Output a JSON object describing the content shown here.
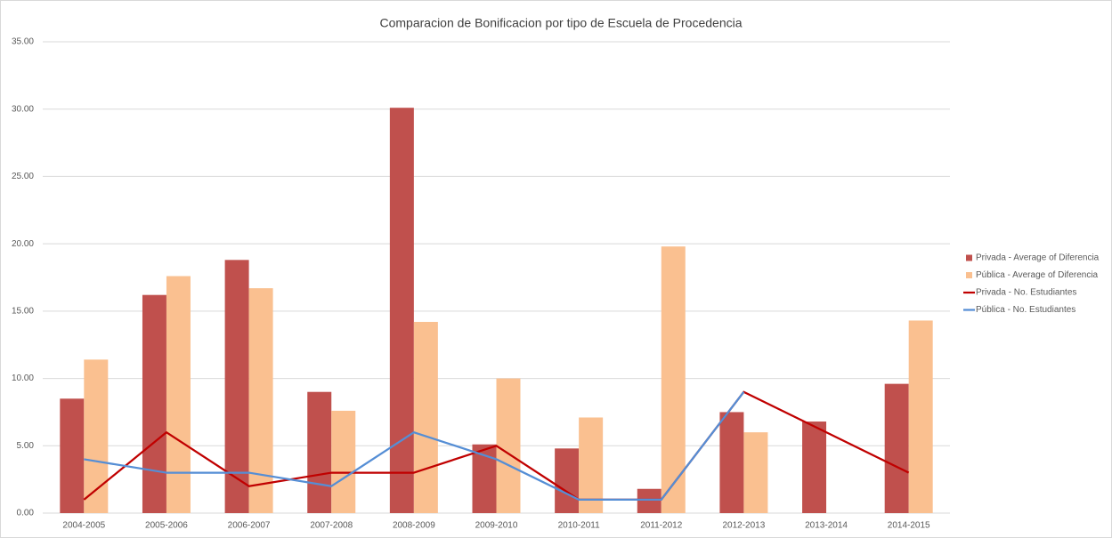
{
  "chart_data": {
    "type": "combo",
    "title": "Comparacion de Bonificacion por tipo de Escuela de Procedencia",
    "categories": [
      "2004-2005",
      "2005-2006",
      "2006-2007",
      "2007-2008",
      "2008-2009",
      "2009-2010",
      "2010-2011",
      "2011-2012",
      "2012-2013",
      "2013-2014",
      "2014-2015"
    ],
    "series": [
      {
        "name": "Privada - Average of Diferencia",
        "type": "bar",
        "color": "#c0504d",
        "values": [
          8.5,
          16.2,
          18.8,
          9.0,
          30.1,
          5.1,
          4.8,
          1.8,
          7.5,
          6.8,
          9.6
        ]
      },
      {
        "name": "Pública - Average of Diferencia",
        "type": "bar",
        "color": "#fac090",
        "values": [
          11.4,
          17.6,
          16.7,
          7.6,
          14.2,
          10.0,
          7.1,
          19.8,
          6.0,
          null,
          14.3
        ]
      },
      {
        "name": "Privada - No. Estudiantes",
        "type": "line",
        "color": "#c00000",
        "values": [
          1,
          6,
          2,
          3,
          3,
          5,
          1,
          1,
          9,
          6,
          3
        ]
      },
      {
        "name": "Pública - No. Estudiantes",
        "type": "line",
        "color": "#558ed5",
        "values": [
          4,
          3,
          3,
          2,
          6,
          4,
          1,
          1,
          9,
          null,
          null
        ]
      }
    ],
    "ylim": [
      0,
      35
    ],
    "yticks": [
      {
        "value": 0,
        "label": "0.00"
      },
      {
        "value": 5,
        "label": "5.00"
      },
      {
        "value": 10,
        "label": "10.00"
      },
      {
        "value": 15,
        "label": "15.00"
      },
      {
        "value": 20,
        "label": "20.00"
      },
      {
        "value": 25,
        "label": "25.00"
      },
      {
        "value": 30,
        "label": "30.00"
      },
      {
        "value": 35,
        "label": "35.00"
      }
    ],
    "grid": true,
    "legend": "right"
  }
}
